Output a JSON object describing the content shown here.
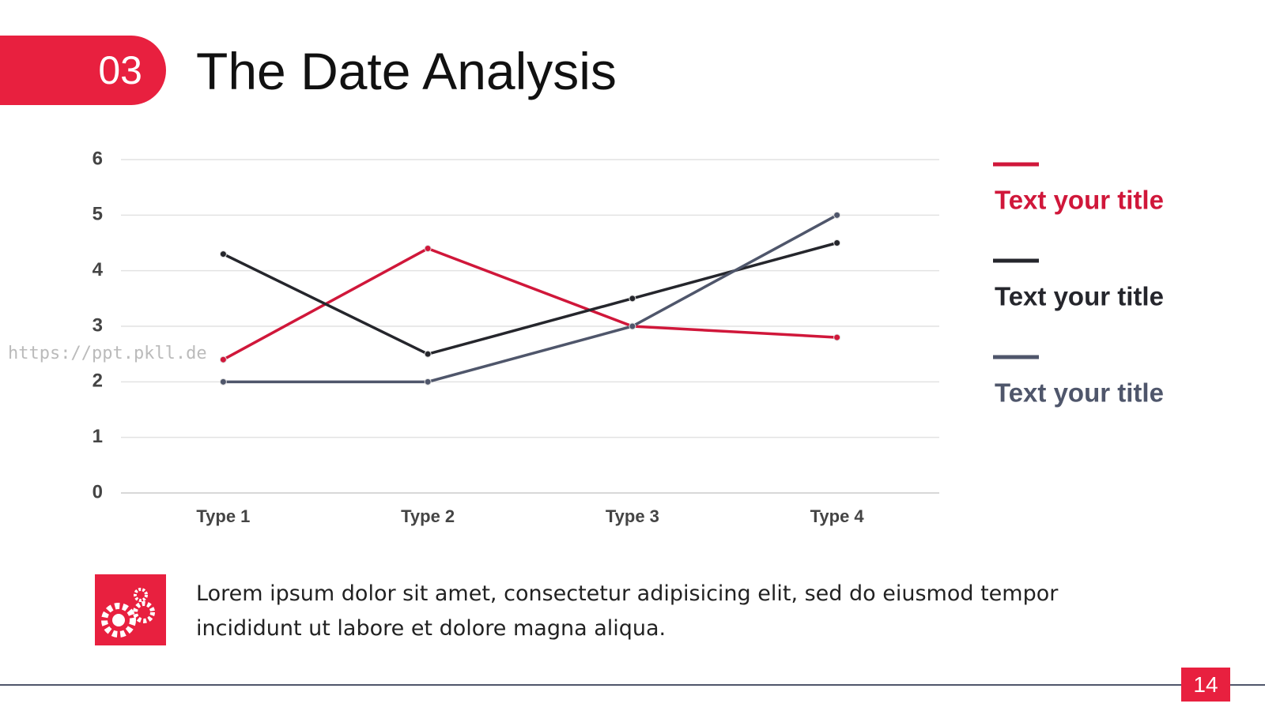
{
  "slide": {
    "badge": "03",
    "title": "The Date Analysis",
    "watermark": "https://ppt.pkll.de",
    "body": "Lorem ipsum dolor sit amet, consectetur adipisicing elit, sed do eiusmod tempor incididunt ut labore et dolore magna aliqua.",
    "page_number": "14"
  },
  "chart_data": {
    "type": "line",
    "categories": [
      "Type 1",
      "Type 2",
      "Type 3",
      "Type 4"
    ],
    "series": [
      {
        "name": "Text your title",
        "color": "#d0173a",
        "values": [
          2.4,
          4.4,
          3.0,
          2.8
        ]
      },
      {
        "name": "Text your title",
        "color": "#25262c",
        "values": [
          4.3,
          2.5,
          3.5,
          4.5
        ]
      },
      {
        "name": "Text your title",
        "color": "#4f566b",
        "values": [
          2.0,
          2.0,
          3.0,
          5.0
        ]
      }
    ],
    "ylim": [
      0,
      6
    ],
    "yticks": [
      0,
      1,
      2,
      3,
      4,
      5,
      6
    ],
    "grid": true,
    "legend": "right"
  }
}
